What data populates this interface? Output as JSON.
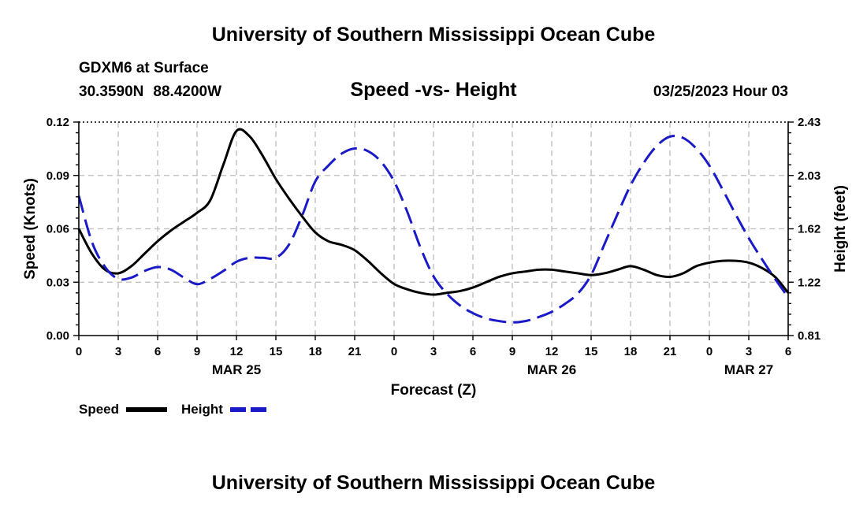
{
  "header": {
    "title": "University of Southern Mississippi Ocean Cube",
    "station": "GDXM6 at Surface",
    "lat": "30.3590N",
    "lon": "88.4200W",
    "datetime": "03/25/2023 Hour 03"
  },
  "footer": {
    "title": "University of Southern Mississippi Ocean Cube"
  },
  "chart_data": {
    "type": "line",
    "title": "Speed -vs- Height",
    "xlabel": "Forecast (Z)",
    "ylabel_left": "Speed (Knots)",
    "ylabel_right": "Height (feet)",
    "x_range_hours": [
      0,
      54
    ],
    "x_ticks": [
      {
        "h": 0,
        "label": "0"
      },
      {
        "h": 3,
        "label": "3"
      },
      {
        "h": 6,
        "label": "6"
      },
      {
        "h": 9,
        "label": "9"
      },
      {
        "h": 12,
        "label": "12"
      },
      {
        "h": 15,
        "label": "15"
      },
      {
        "h": 18,
        "label": "18"
      },
      {
        "h": 21,
        "label": "21"
      },
      {
        "h": 24,
        "label": "0"
      },
      {
        "h": 27,
        "label": "3"
      },
      {
        "h": 30,
        "label": "6"
      },
      {
        "h": 33,
        "label": "9"
      },
      {
        "h": 36,
        "label": "12"
      },
      {
        "h": 39,
        "label": "15"
      },
      {
        "h": 42,
        "label": "18"
      },
      {
        "h": 45,
        "label": "21"
      },
      {
        "h": 48,
        "label": "0"
      },
      {
        "h": 51,
        "label": "3"
      },
      {
        "h": 54,
        "label": "6"
      }
    ],
    "date_labels": [
      {
        "h": 12,
        "label": "MAR 25"
      },
      {
        "h": 36,
        "label": "MAR 26"
      },
      {
        "h": 51,
        "label": "MAR 27"
      }
    ],
    "y_left": {
      "min": 0,
      "max": 0.12,
      "ticks": [
        "0.00",
        "0.03",
        "0.06",
        "0.09",
        "0.12"
      ]
    },
    "y_right": {
      "min": 0.81,
      "max": 2.43,
      "ticks": [
        "0.81",
        "1.22",
        "1.62",
        "2.03",
        "2.43"
      ]
    },
    "grid": true,
    "series": [
      {
        "name": "Speed",
        "axis": "left",
        "color": "#000000",
        "dash": "solid",
        "x": [
          0,
          1,
          2,
          3,
          4,
          5,
          6,
          7,
          8,
          9,
          10,
          11,
          12,
          13,
          14,
          15,
          16,
          17,
          18,
          19,
          20,
          21,
          22,
          23,
          24,
          25,
          26,
          27,
          28,
          29,
          30,
          31,
          32,
          33,
          34,
          35,
          36,
          37,
          38,
          39,
          40,
          41,
          42,
          43,
          44,
          45,
          46,
          47,
          48,
          49,
          50,
          51,
          52,
          53,
          54
        ],
        "values": [
          0.06,
          0.046,
          0.037,
          0.035,
          0.039,
          0.046,
          0.053,
          0.059,
          0.064,
          0.069,
          0.076,
          0.096,
          0.115,
          0.112,
          0.101,
          0.088,
          0.077,
          0.067,
          0.058,
          0.053,
          0.051,
          0.048,
          0.042,
          0.035,
          0.029,
          0.026,
          0.024,
          0.023,
          0.024,
          0.025,
          0.027,
          0.03,
          0.033,
          0.035,
          0.036,
          0.037,
          0.037,
          0.036,
          0.035,
          0.034,
          0.035,
          0.037,
          0.039,
          0.037,
          0.034,
          0.033,
          0.035,
          0.039,
          0.041,
          0.042,
          0.042,
          0.041,
          0.038,
          0.033,
          0.024
        ]
      },
      {
        "name": "Height",
        "axis": "right",
        "color": "#1a1ac8",
        "dash": "dashed",
        "x": [
          0,
          1,
          2,
          3,
          4,
          5,
          6,
          7,
          8,
          9,
          10,
          11,
          12,
          13,
          14,
          15,
          16,
          17,
          18,
          19,
          20,
          21,
          22,
          23,
          24,
          25,
          26,
          27,
          28,
          29,
          30,
          31,
          32,
          33,
          34,
          35,
          36,
          37,
          38,
          39,
          40,
          41,
          42,
          43,
          44,
          45,
          46,
          47,
          48,
          49,
          50,
          51,
          52,
          53,
          54
        ],
        "values": [
          1.87,
          1.52,
          1.33,
          1.24,
          1.25,
          1.3,
          1.33,
          1.31,
          1.25,
          1.2,
          1.24,
          1.3,
          1.37,
          1.4,
          1.4,
          1.4,
          1.5,
          1.72,
          1.98,
          2.1,
          2.19,
          2.23,
          2.21,
          2.13,
          1.98,
          1.75,
          1.48,
          1.26,
          1.13,
          1.04,
          0.98,
          0.94,
          0.92,
          0.91,
          0.92,
          0.95,
          0.99,
          1.05,
          1.13,
          1.27,
          1.5,
          1.73,
          1.95,
          2.12,
          2.25,
          2.32,
          2.31,
          2.23,
          2.1,
          1.92,
          1.73,
          1.55,
          1.39,
          1.24,
          1.1
        ]
      }
    ],
    "legend": [
      {
        "label": "Speed",
        "color": "#000000",
        "dash": "solid"
      },
      {
        "label": "Height",
        "color": "#1a1ac8",
        "dash": "dashed"
      }
    ],
    "legend_position": "bottom-left"
  }
}
